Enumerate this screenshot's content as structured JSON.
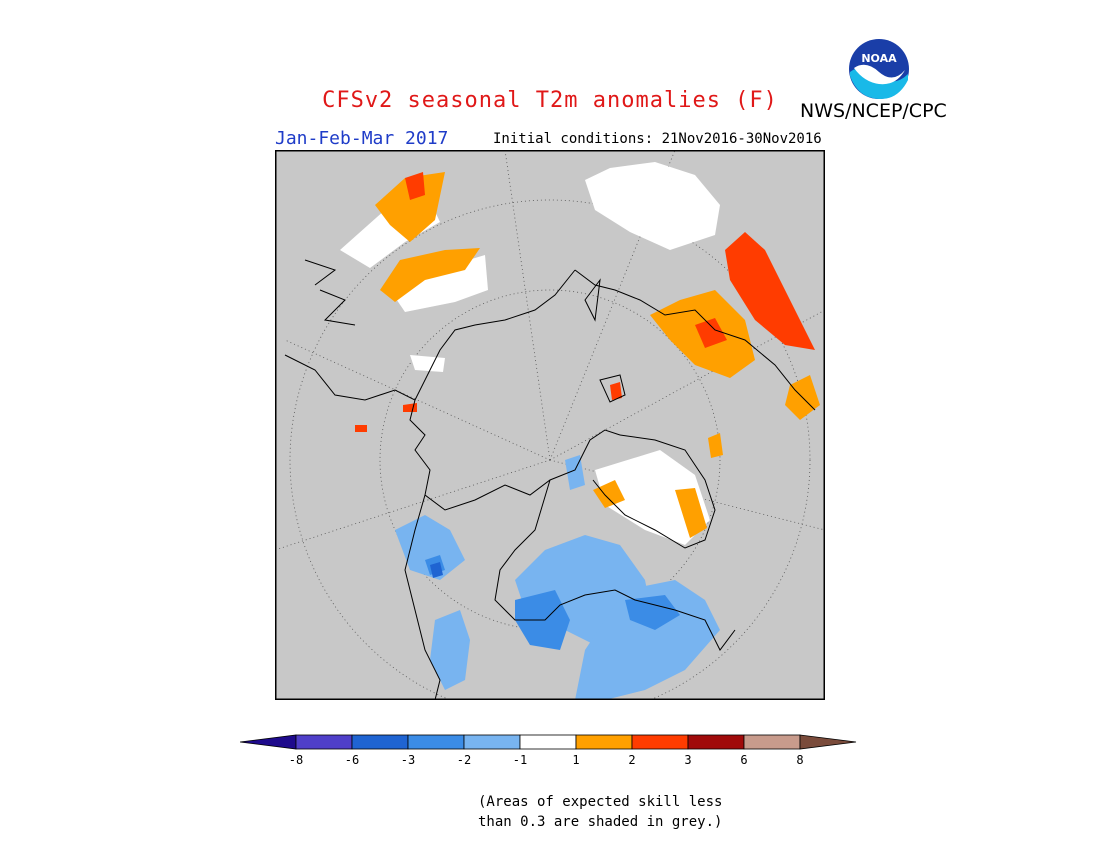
{
  "header": {
    "title": "CFSv2 seasonal T2m anomalies (F)",
    "agency": "NWS/NCEP/CPC",
    "season": "Jan-Feb-Mar 2017",
    "initial_conditions": "Initial conditions: 21Nov2016-30Nov2016"
  },
  "logo": {
    "icon": "noaa-logo",
    "text": "NOAA"
  },
  "map": {
    "projection": "north polar stereographic",
    "grey_color": "#c8c8c8",
    "ocean_color": "#c8c8c8"
  },
  "colorbar": {
    "labels": [
      "-8",
      "-6",
      "-3",
      "-2",
      "-1",
      "1",
      "2",
      "3",
      "6",
      "8"
    ],
    "colors": [
      "#1e0a8c",
      "#4f3fc9",
      "#1f64d2",
      "#3b8ce6",
      "#78b4f0",
      "#ffffff",
      "#ffa000",
      "#ff3c00",
      "#a00a0a",
      "#c89b8c",
      "#7a4b3b"
    ]
  },
  "note": {
    "line1": "(Areas of expected skill less",
    "line2": "than 0.3 are shaded in grey.)"
  }
}
